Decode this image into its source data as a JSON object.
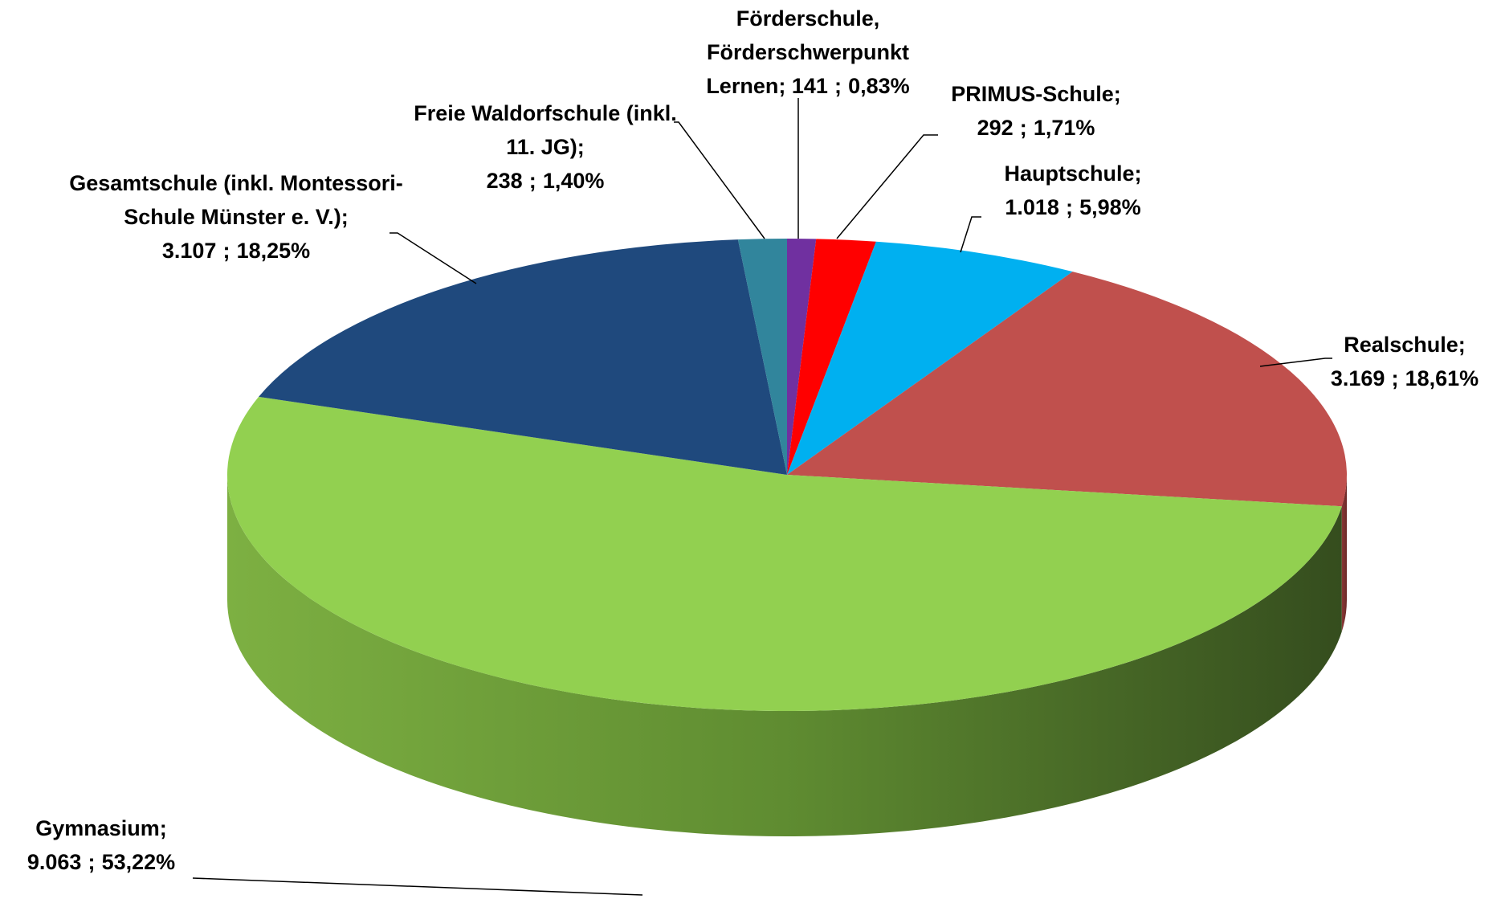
{
  "chart_data": {
    "type": "pie3d",
    "categories": [
      "Förderschule, Förderschwerpunkt Lernen",
      "PRIMUS-Schule",
      "Hauptschule",
      "Realschule",
      "Gymnasium",
      "Gesamtschule (inkl. Montessori-Schule Münster e. V.)",
      "Freie Waldorfschule (inkl. 11. JG)"
    ],
    "values": [
      141,
      292,
      1018,
      3169,
      9063,
      3107,
      238
    ],
    "value_labels": [
      "141",
      "292",
      "1.018",
      "3.169",
      "9.063",
      "3.107",
      "238"
    ],
    "percents": [
      0.83,
      1.71,
      5.98,
      18.61,
      53.22,
      18.25,
      1.4
    ],
    "percent_labels": [
      "0,83%",
      "1,71%",
      "5,98%",
      "18,61%",
      "53,22%",
      "18,25%",
      "1,40%"
    ],
    "label_separator": ";",
    "colors": [
      "#7030a0",
      "#ff0000",
      "#00b0f0",
      "#c0504d",
      "#92d050",
      "#1f497d",
      "#31859c"
    ]
  }
}
